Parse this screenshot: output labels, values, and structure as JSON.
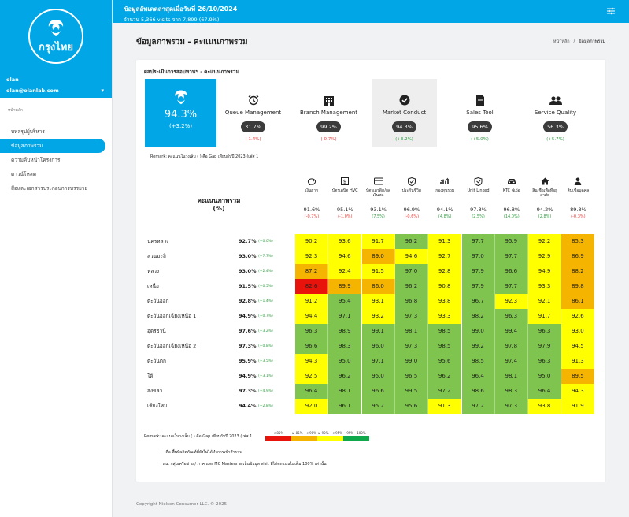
{
  "sidebar": {
    "logo_text": "กรุงไทย",
    "user_name": "olan",
    "user_email": "olan@olanlab.com",
    "section_label": "หน้าหลัก",
    "items": [
      {
        "label": "บทสรุปผู้บริหาร",
        "active": false
      },
      {
        "label": "ข้อมูลภาพรวม",
        "active": true
      },
      {
        "label": "ความคืบหน้าโครงการ",
        "active": false
      },
      {
        "label": "ดาวน์โหลด",
        "active": false
      },
      {
        "label": "สื่อและเอกสารประกอบการบรรยาย",
        "active": false
      }
    ]
  },
  "topbar": {
    "title": "ข้อมูลอัพเดตล่าสุดเมื่อวันที่ 26/10/2024",
    "subtitle": "จำนวน 5,366 visits จาก 7,899 (67.9%)"
  },
  "page": {
    "title": "ข้อมูลภาพรวม - คะแนนภาพรวม",
    "breadcrumb_home": "หน้าหลัก",
    "breadcrumb_sep": "/",
    "breadcrumb_current": "ข้อมูลภาพรวม"
  },
  "card": {
    "title": "ผลประเมินการสอบทานฯ - คะแนนภาพรวม",
    "overall": {
      "score": "94.3%",
      "gap": "(+3.2%)"
    },
    "categories": [
      {
        "label": "Queue Management",
        "score": "31.7%",
        "gap": "(-1.4%)",
        "dir": "neg",
        "icon": "alarm-clock-icon"
      },
      {
        "label": "Branch Management",
        "score": "99.2%",
        "gap": "(-0.7%)",
        "dir": "neg",
        "icon": "building-icon"
      },
      {
        "label": "Market Conduct",
        "score": "94.3%",
        "gap": "(+3.2%)",
        "dir": "pos",
        "icon": "check-circle-icon"
      },
      {
        "label": "Sales Tool",
        "score": "95.6%",
        "gap": "(+5.0%)",
        "dir": "pos",
        "icon": "document-icon"
      },
      {
        "label": "Service Quality",
        "score": "56.3%",
        "gap": "(+5.7%)",
        "dir": "pos",
        "icon": "users-icon"
      }
    ],
    "remark1": "Remark: คะแนนในวงเล็บ ( ) คือ Gap เทียบกับปี 2023 (เฟส 1"
  },
  "table": {
    "heading_line1": "คะแนนภาพรวม",
    "heading_line2": "(%)",
    "columns": [
      {
        "name": "เงินฝาก",
        "score": "91.6%",
        "gap": "(-0.7%)",
        "dir": "neg",
        "icon": "piggy-bank-icon"
      },
      {
        "name": "บัตรเดบิต HVC",
        "score": "95.1%",
        "gap": "(-1.0%)",
        "dir": "neg",
        "icon": "debit-card-icon"
      },
      {
        "name": "บัตรเครดิต/กดเงินสด",
        "score": "93.1%",
        "gap": "(7.5%)",
        "dir": "pos",
        "icon": "credit-card-icon"
      },
      {
        "name": "ประกันชีวิต",
        "score": "96.9%",
        "gap": "(-0.6%)",
        "dir": "neg",
        "icon": "shield-icon"
      },
      {
        "name": "กองทุนรวม",
        "score": "94.1%",
        "gap": "(4.8%)",
        "dir": "pos",
        "icon": "fund-chart-icon"
      },
      {
        "name": "Unit Linked",
        "score": "97.8%",
        "gap": "(2.5%)",
        "dir": "pos",
        "icon": "unit-linked-icon"
      },
      {
        "name": "KTC ฟเว่อ",
        "score": "96.8%",
        "gap": "(14.0%)",
        "dir": "pos",
        "icon": "car-icon"
      },
      {
        "name": "สินเชื่อเพื่อที่อยู่อาศัย",
        "score": "94.2%",
        "gap": "(2.8%)",
        "dir": "pos",
        "icon": "house-icon"
      },
      {
        "name": "สินเชื่อบุคคล",
        "score": "89.8%",
        "gap": "(-0.3%)",
        "dir": "neg",
        "icon": "person-icon"
      }
    ],
    "rows": [
      {
        "name": "นครหลวง",
        "score": "92.7%",
        "gap": "(+0.0%)",
        "cells": [
          "90.2",
          "93.6",
          "91.7",
          "96.2",
          "91.3",
          "97.7",
          "95.9",
          "92.2",
          "85.3"
        ]
      },
      {
        "name": "สวนมะลิ",
        "score": "93.0%",
        "gap": "(+7.7%)",
        "cells": [
          "92.3",
          "94.6",
          "89.0",
          "94.6",
          "92.7",
          "97.0",
          "97.7",
          "92.9",
          "86.9"
        ]
      },
      {
        "name": "หลวง",
        "score": "93.0%",
        "gap": "(+2.4%)",
        "cells": [
          "87.2",
          "92.4",
          "91.5",
          "97.0",
          "92.8",
          "97.9",
          "96.6",
          "94.9",
          "88.2"
        ]
      },
      {
        "name": "เหนือ",
        "score": "91.5%",
        "gap": "(+0.5%)",
        "cells": [
          "82.6",
          "89.9",
          "86.0",
          "96.2",
          "90.8",
          "97.9",
          "97.7",
          "93.3",
          "89.8"
        ]
      },
      {
        "name": "ตะวันออก",
        "score": "92.8%",
        "gap": "(+1.4%)",
        "cells": [
          "91.2",
          "95.4",
          "93.1",
          "96.8",
          "93.8",
          "96.7",
          "92.3",
          "92.1",
          "86.1"
        ]
      },
      {
        "name": "ตะวันออกเฉียงเหนือ 1",
        "score": "94.9%",
        "gap": "(+0.7%)",
        "cells": [
          "94.4",
          "97.1",
          "93.2",
          "97.3",
          "93.3",
          "98.2",
          "96.3",
          "91.7",
          "92.6"
        ]
      },
      {
        "name": "อุดรธานี",
        "score": "97.6%",
        "gap": "(+3.2%)",
        "cells": [
          "96.3",
          "98.9",
          "99.1",
          "98.1",
          "98.5",
          "99.0",
          "99.4",
          "96.3",
          "93.0"
        ]
      },
      {
        "name": "ตะวันออกเฉียงเหนือ 2",
        "score": "97.3%",
        "gap": "(+0.8%)",
        "cells": [
          "96.6",
          "98.3",
          "96.0",
          "97.3",
          "98.5",
          "99.2",
          "97.8",
          "97.9",
          "94.5"
        ]
      },
      {
        "name": "ตะวันตก",
        "score": "95.9%",
        "gap": "(+3.5%)",
        "cells": [
          "94.3",
          "95.0",
          "97.1",
          "99.0",
          "95.6",
          "98.5",
          "97.4",
          "96.3",
          "91.3"
        ]
      },
      {
        "name": "ใต้",
        "score": "94.9%",
        "gap": "(+3.1%)",
        "cells": [
          "92.5",
          "96.2",
          "95.0",
          "96.5",
          "96.2",
          "96.4",
          "98.1",
          "95.0",
          "89.5"
        ]
      },
      {
        "name": "สงขลา",
        "score": "97.3%",
        "gap": "(+4.9%)",
        "cells": [
          "96.4",
          "98.1",
          "96.6",
          "99.5",
          "97.2",
          "98.6",
          "98.3",
          "96.4",
          "94.3"
        ]
      },
      {
        "name": "เชียงใหม่",
        "score": "94.4%",
        "gap": "(+2.8%)",
        "cells": [
          "92.0",
          "96.1",
          "95.2",
          "95.6",
          "91.3",
          "97.2",
          "97.3",
          "93.8",
          "91.9"
        ]
      }
    ],
    "remark2": "Remark: คะแนนในวงเล็บ ( ) คือ Gap เทียบกับปี 2023 (เฟส 1",
    "legend": [
      {
        "label": "< 85%",
        "color": "#e8140c"
      },
      {
        "label": "≥ 85% - < 90%",
        "color": "#f5b400"
      },
      {
        "label": "≥ 90% - < 95%",
        "color": "#ffff00"
      },
      {
        "label": "95% - 100%",
        "color": "#0fa84a"
      }
    ],
    "note1": "- คือ พื้นที่ผลิตภัณฑ์ที่ยังไม่ได้ทำการเข้าสำรวจ",
    "note2": "ผน. กลุ่มเครือข่าย / ภาค และ MC Masters จะเห็นข้อมูล visit ที่ได้คะแนนไม่เต็ม 100% เท่านั้น"
  },
  "colors": {
    "brand": "#00a6e6",
    "cell_red": "#e8140c",
    "cell_orange": "#f5b400",
    "cell_yellow": "#ffff00",
    "cell_green": "#7ec44f"
  },
  "footer": "Copyright Nielsen Consumer LLC. © 2025"
}
